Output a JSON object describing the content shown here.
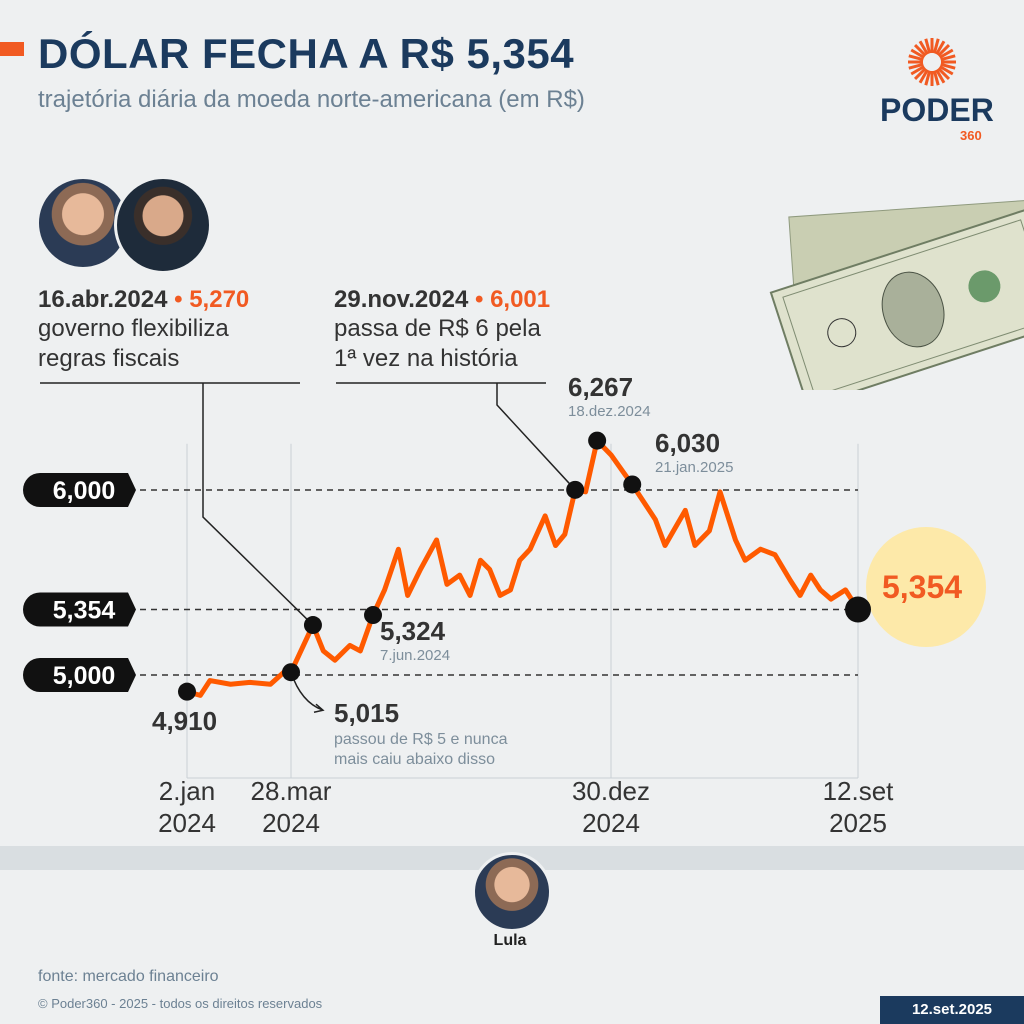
{
  "header": {
    "title": "DÓLAR FECHA A R$ 5,354",
    "subtitle": "trajetória diária da moeda norte-americana (em R$)"
  },
  "logo": {
    "word": "PODER",
    "num": "360"
  },
  "colors": {
    "accent": "#f15a22",
    "navy": "#1b3a5e",
    "highlight": "#fde9a9",
    "line": "#ff5a00"
  },
  "annotations": [
    {
      "date": "16.abr.2024",
      "value": "5,270",
      "text": [
        "governo flexibiliza",
        "regras fiscais"
      ]
    },
    {
      "date": "29.nov.2024",
      "value": "6,001",
      "text": [
        "passa de R$ 6 pela",
        "1ª vez na história"
      ]
    }
  ],
  "chart_data": {
    "type": "line",
    "title": "DÓLAR FECHA A R$ 5,354",
    "subtitle": "trajetória diária da moeda norte-americana (em R$)",
    "ylim": [
      4.85,
      6.3
    ],
    "reference_lines": [
      {
        "label": "6,000",
        "value": 6.0
      },
      {
        "label": "5,354",
        "value": 5.354
      },
      {
        "label": "5,000",
        "value": 5.0
      }
    ],
    "x_ticks": [
      {
        "date": "2024-01-02",
        "label": [
          "2.jan",
          "2024"
        ]
      },
      {
        "date": "2024-03-28",
        "label": [
          "28.mar",
          "2024"
        ]
      },
      {
        "date": "2024-12-30",
        "label": [
          "30.dez",
          "2024"
        ]
      },
      {
        "date": "2025-09-12",
        "label": [
          "12.set",
          "2025"
        ]
      }
    ],
    "series": [
      {
        "points": [
          [
            "2024-01-02",
            4.91
          ],
          [
            "2024-01-13",
            4.89
          ],
          [
            "2024-01-21",
            4.97
          ],
          [
            "2024-02-07",
            4.95
          ],
          [
            "2024-02-23",
            4.96
          ],
          [
            "2024-03-11",
            4.95
          ],
          [
            "2024-03-23",
            5.02
          ],
          [
            "2024-03-28",
            5.015
          ],
          [
            "2024-04-16",
            5.27
          ],
          [
            "2024-04-25",
            5.13
          ],
          [
            "2024-05-05",
            5.08
          ],
          [
            "2024-05-18",
            5.16
          ],
          [
            "2024-05-27",
            5.13
          ],
          [
            "2024-06-07",
            5.324
          ],
          [
            "2024-06-17",
            5.46
          ],
          [
            "2024-06-29",
            5.68
          ],
          [
            "2024-07-07",
            5.43
          ],
          [
            "2024-07-18",
            5.57
          ],
          [
            "2024-08-01",
            5.73
          ],
          [
            "2024-08-10",
            5.49
          ],
          [
            "2024-08-21",
            5.54
          ],
          [
            "2024-08-30",
            5.43
          ],
          [
            "2024-09-08",
            5.62
          ],
          [
            "2024-09-16",
            5.57
          ],
          [
            "2024-09-25",
            5.43
          ],
          [
            "2024-10-04",
            5.46
          ],
          [
            "2024-10-12",
            5.62
          ],
          [
            "2024-10-21",
            5.68
          ],
          [
            "2024-11-03",
            5.86
          ],
          [
            "2024-11-12",
            5.7
          ],
          [
            "2024-11-20",
            5.76
          ],
          [
            "2024-11-29",
            6.001
          ],
          [
            "2024-12-08",
            5.99
          ],
          [
            "2024-12-18",
            6.267
          ],
          [
            "2024-12-30",
            6.19
          ],
          [
            "2025-01-14",
            6.08
          ],
          [
            "2025-01-21",
            6.03
          ],
          [
            "2025-02-14",
            5.84
          ],
          [
            "2025-02-24",
            5.7
          ],
          [
            "2025-03-17",
            5.89
          ],
          [
            "2025-03-27",
            5.7
          ],
          [
            "2025-04-11",
            5.78
          ],
          [
            "2025-04-22",
            5.99
          ],
          [
            "2025-05-08",
            5.73
          ],
          [
            "2025-05-18",
            5.62
          ],
          [
            "2025-06-03",
            5.68
          ],
          [
            "2025-06-18",
            5.65
          ],
          [
            "2025-07-04",
            5.51
          ],
          [
            "2025-07-14",
            5.43
          ],
          [
            "2025-07-25",
            5.54
          ],
          [
            "2025-08-04",
            5.46
          ],
          [
            "2025-08-15",
            5.41
          ],
          [
            "2025-08-30",
            5.46
          ],
          [
            "2025-09-12",
            5.354
          ]
        ]
      }
    ],
    "highlights": [
      {
        "date": "2024-01-02",
        "value": 4.91,
        "label": "4,910"
      },
      {
        "date": "2024-03-28",
        "value": 5.015,
        "label": "5,015",
        "note": [
          "passou de R$ 5 e nunca",
          "mais caiu abaixo disso"
        ]
      },
      {
        "date": "2024-04-16",
        "value": 5.27
      },
      {
        "date": "2024-06-07",
        "value": 5.324,
        "label": "5,324",
        "sub": "7.jun.2024"
      },
      {
        "date": "2024-11-29",
        "value": 6.001
      },
      {
        "date": "2024-12-18",
        "value": 6.267,
        "label": "6,267",
        "sub": "18.dez.2024"
      },
      {
        "date": "2025-01-21",
        "value": 6.03,
        "label": "6,030",
        "sub": "21.jan.2025"
      },
      {
        "date": "2025-09-12",
        "value": 5.354,
        "label": "5,354"
      }
    ],
    "grid": false,
    "legend": "none"
  },
  "president": {
    "name": "Lula"
  },
  "footer": {
    "source": "fonte: mercado financeiro",
    "copyright": "© Poder360 - 2025 - todos os direitos reservados",
    "date": "12.set.2025"
  }
}
